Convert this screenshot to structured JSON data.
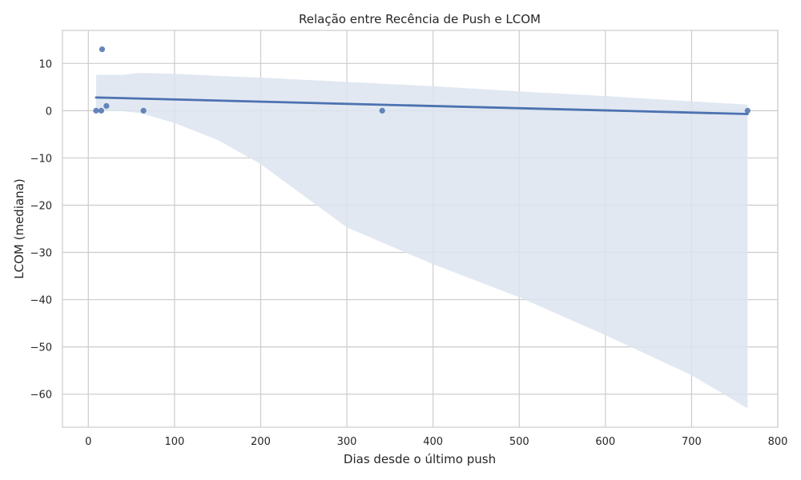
{
  "chart_data": {
    "type": "scatter",
    "title": "Relação entre Recência de Push e LCOM",
    "xlabel": "Dias desde o último push",
    "ylabel": "LCOM (mediana)",
    "xlim": [
      -30,
      800
    ],
    "ylim": [
      -67,
      17
    ],
    "x_ticks": [
      0,
      100,
      200,
      300,
      400,
      500,
      600,
      700,
      800
    ],
    "y_ticks": [
      10,
      0,
      -10,
      -20,
      -30,
      -40,
      -50,
      -60
    ],
    "x_tick_labels": [
      "0",
      "100",
      "200",
      "300",
      "400",
      "500",
      "600",
      "700",
      "800"
    ],
    "y_tick_labels": [
      "10",
      "0",
      "−10",
      "−20",
      "−30",
      "−40",
      "−50",
      "−60"
    ],
    "grid": true,
    "points": [
      {
        "x": 9,
        "y": 0
      },
      {
        "x": 15,
        "y": 0
      },
      {
        "x": 16,
        "y": 13
      },
      {
        "x": 21,
        "y": 1
      },
      {
        "x": 64,
        "y": 0
      },
      {
        "x": 341,
        "y": 0
      },
      {
        "x": 765,
        "y": 0
      }
    ],
    "regression": {
      "x": [
        9,
        765
      ],
      "y": [
        2.8,
        -0.7
      ]
    },
    "confidence_band": {
      "x": [
        9,
        40,
        60,
        100,
        150,
        200,
        300,
        400,
        500,
        600,
        700,
        765
      ],
      "upper": [
        7.6,
        7.6,
        8.0,
        7.8,
        7.4,
        7.0,
        6.1,
        5.2,
        4.1,
        3.1,
        2.0,
        1.3
      ],
      "lower": [
        -0.1,
        -0.1,
        -0.5,
        -2.6,
        -6.2,
        -11.3,
        -24.7,
        -32.5,
        -39.5,
        -47.5,
        -56.0,
        -63.0
      ]
    },
    "colors": {
      "points": "#4c72b0",
      "line": "#4c72b0",
      "band": "#dde4f0",
      "grid": "#cccccc",
      "spine": "#cccccc"
    }
  }
}
